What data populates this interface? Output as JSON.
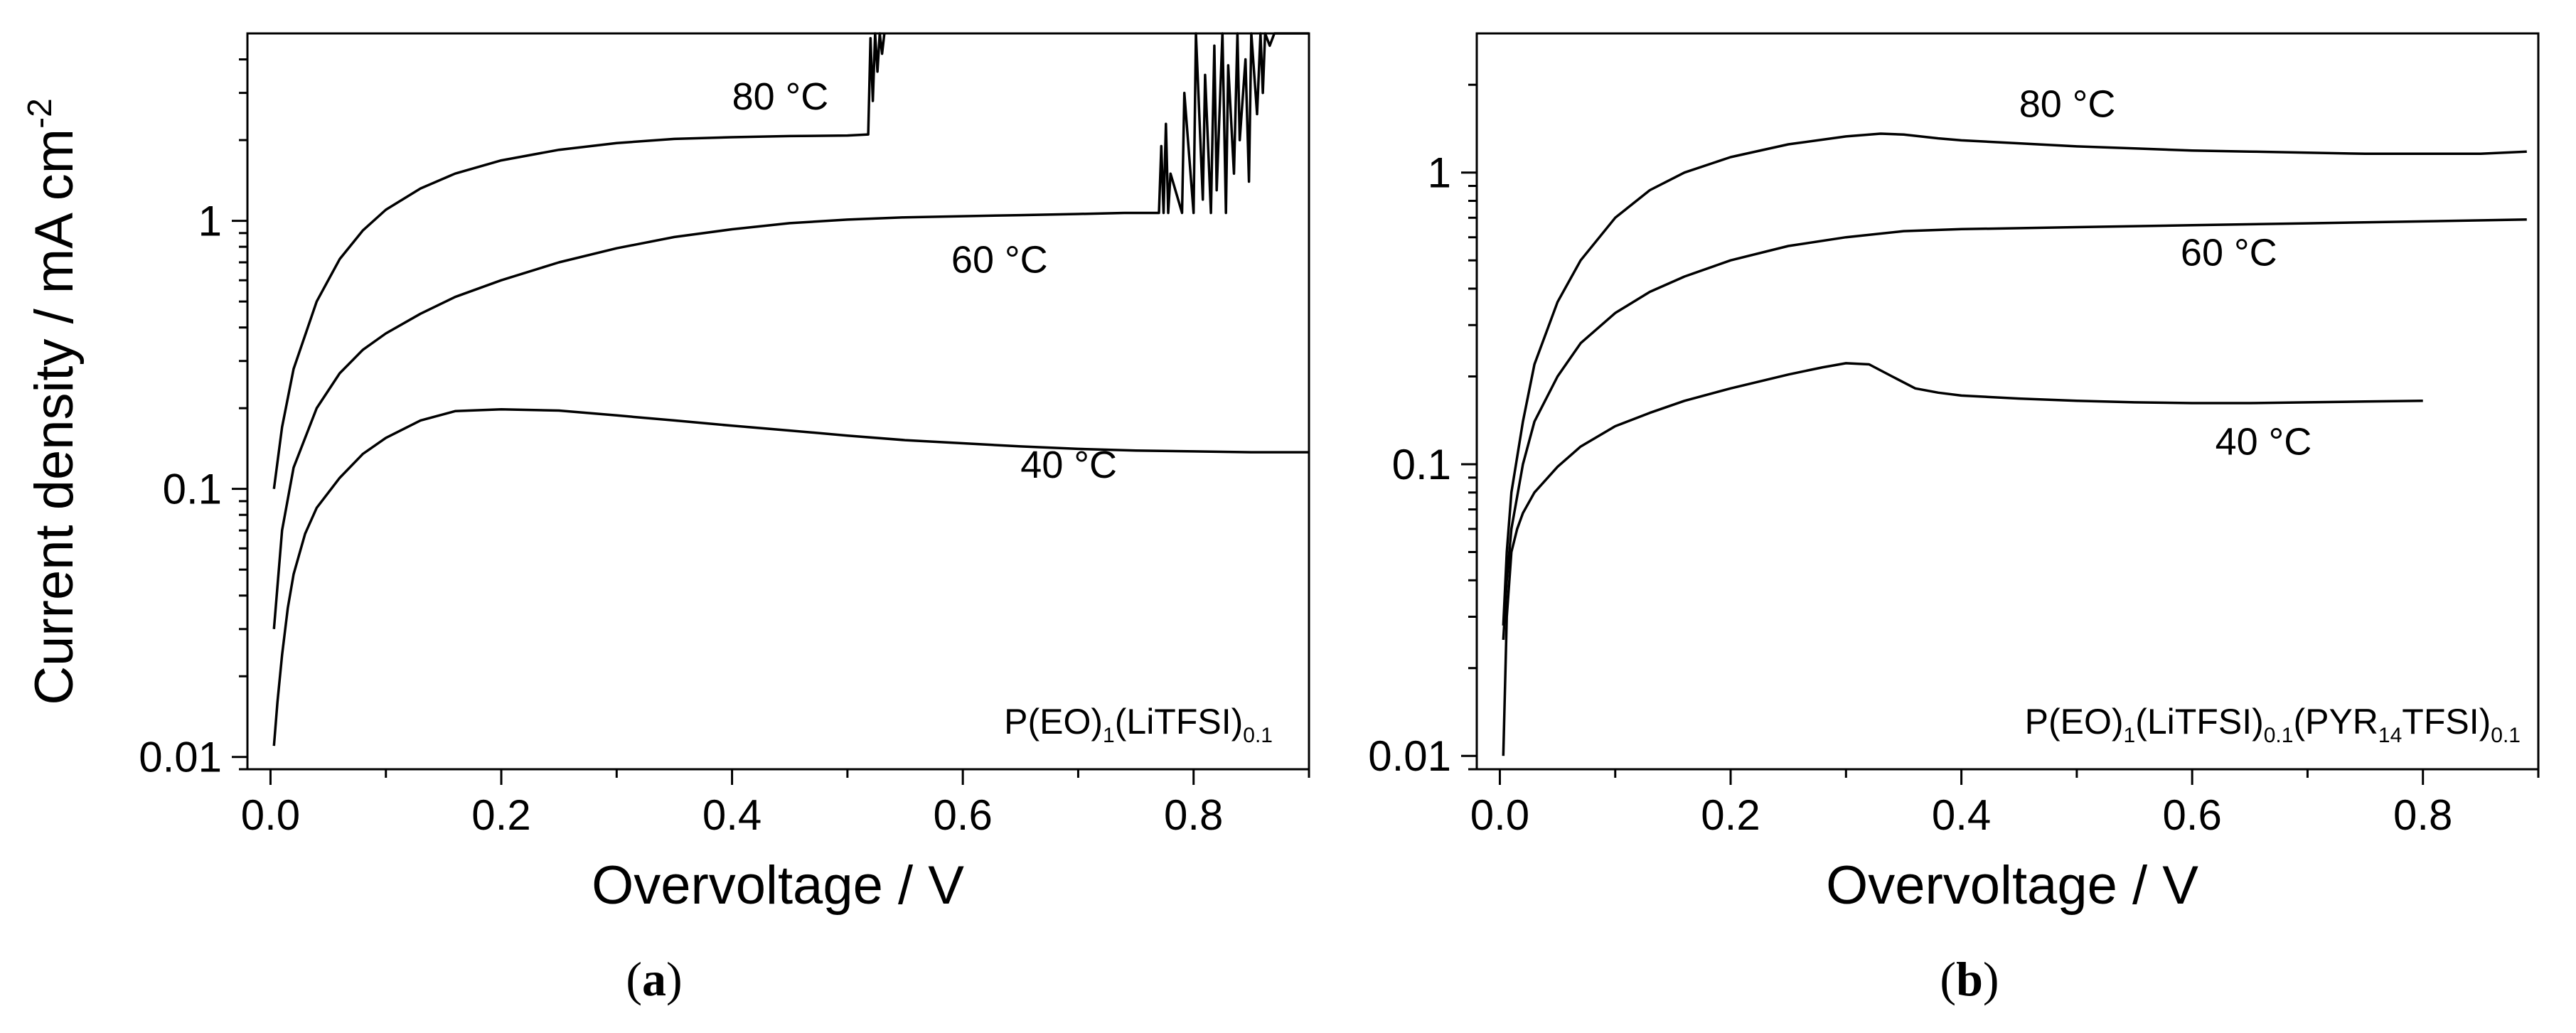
{
  "chart_data": [
    {
      "type": "line",
      "panel_label": "a",
      "xlabel": "Overvoltage / V",
      "ylabel_main": "Current density / mA cm",
      "ylabel_superscript": "-2",
      "xlim": [
        -0.02,
        0.9
      ],
      "ylim": [
        0.009,
        5.0
      ],
      "yscale": "log",
      "x_ticks": [
        0.0,
        0.2,
        0.4,
        0.6,
        0.8
      ],
      "x_tick_labels": [
        "0.0",
        "0.2",
        "0.4",
        "0.6",
        "0.8"
      ],
      "y_ticks": [
        0.01,
        0.1,
        1
      ],
      "y_tick_labels": [
        "0.01",
        "0.1",
        "1"
      ],
      "composition": [
        {
          "text": "P(EO)",
          "sub": false
        },
        {
          "text": "1",
          "sub": true
        },
        {
          "text": "(LiTFSI)",
          "sub": false
        },
        {
          "text": "0.1",
          "sub": true
        }
      ],
      "series": [
        {
          "name": "80 °C",
          "label_text": "80 °C",
          "label_pos": [
            0.4,
            2.6
          ],
          "x": [
            0.003,
            0.01,
            0.02,
            0.04,
            0.06,
            0.08,
            0.1,
            0.13,
            0.16,
            0.2,
            0.25,
            0.3,
            0.35,
            0.4,
            0.45,
            0.5,
            0.518,
            0.52,
            0.522,
            0.524,
            0.526,
            0.528,
            0.53,
            0.532
          ],
          "values": [
            0.1,
            0.17,
            0.28,
            0.5,
            0.72,
            0.92,
            1.1,
            1.32,
            1.5,
            1.68,
            1.84,
            1.95,
            2.02,
            2.05,
            2.07,
            2.08,
            2.1,
            4.8,
            2.8,
            5.0,
            3.6,
            5.0,
            4.2,
            5.0
          ]
        },
        {
          "name": "60 °C",
          "label_text": "60 °C",
          "label_pos": [
            0.59,
            0.64
          ],
          "x": [
            0.003,
            0.01,
            0.02,
            0.04,
            0.06,
            0.08,
            0.1,
            0.13,
            0.16,
            0.2,
            0.25,
            0.3,
            0.35,
            0.4,
            0.45,
            0.5,
            0.55,
            0.6,
            0.65,
            0.7,
            0.74,
            0.77,
            0.772,
            0.774,
            0.776,
            0.778,
            0.78,
            0.79,
            0.792,
            0.8,
            0.802,
            0.808,
            0.81,
            0.815,
            0.818,
            0.82,
            0.825,
            0.828,
            0.83,
            0.835,
            0.838,
            0.84,
            0.845,
            0.848,
            0.85,
            0.855,
            0.858,
            0.86,
            0.862,
            0.866,
            0.87,
            0.9
          ],
          "values": [
            0.03,
            0.07,
            0.12,
            0.2,
            0.27,
            0.33,
            0.38,
            0.45,
            0.52,
            0.6,
            0.7,
            0.79,
            0.87,
            0.93,
            0.98,
            1.01,
            1.03,
            1.04,
            1.05,
            1.06,
            1.07,
            1.07,
            1.9,
            1.07,
            2.3,
            1.07,
            1.5,
            1.07,
            3.0,
            1.07,
            5.0,
            1.2,
            3.5,
            1.07,
            4.5,
            1.3,
            5.0,
            1.07,
            3.8,
            1.5,
            5.0,
            2.0,
            4.0,
            1.4,
            5.0,
            2.5,
            5.0,
            3.0,
            5.0,
            4.5,
            5.0,
            5.0
          ]
        },
        {
          "name": "40 °C",
          "label_text": "40 °C",
          "label_pos": [
            0.65,
            0.11
          ],
          "x": [
            0.003,
            0.006,
            0.01,
            0.015,
            0.02,
            0.03,
            0.04,
            0.06,
            0.08,
            0.1,
            0.13,
            0.16,
            0.2,
            0.25,
            0.3,
            0.35,
            0.4,
            0.45,
            0.5,
            0.55,
            0.6,
            0.65,
            0.7,
            0.75,
            0.8,
            0.85,
            0.9
          ],
          "values": [
            0.011,
            0.016,
            0.024,
            0.036,
            0.048,
            0.068,
            0.085,
            0.11,
            0.135,
            0.155,
            0.18,
            0.195,
            0.198,
            0.196,
            0.188,
            0.18,
            0.172,
            0.165,
            0.158,
            0.152,
            0.148,
            0.144,
            0.141,
            0.139,
            0.138,
            0.137,
            0.137
          ]
        }
      ]
    },
    {
      "type": "line",
      "panel_label": "b",
      "xlabel": "Overvoltage / V",
      "xlim": [
        -0.02,
        0.9
      ],
      "ylim": [
        0.009,
        3.0
      ],
      "yscale": "log",
      "x_ticks": [
        0.0,
        0.2,
        0.4,
        0.6,
        0.8
      ],
      "x_tick_labels": [
        "0.0",
        "0.2",
        "0.4",
        "0.6",
        "0.8"
      ],
      "y_ticks": [
        0.01,
        0.1,
        1
      ],
      "y_tick_labels": [
        "0.01",
        "0.1",
        "1"
      ],
      "composition": [
        {
          "text": "P(EO)",
          "sub": false
        },
        {
          "text": "1",
          "sub": true
        },
        {
          "text": "(LiTFSI)",
          "sub": false
        },
        {
          "text": "0.1",
          "sub": true
        },
        {
          "text": "(PYR",
          "sub": false
        },
        {
          "text": "14",
          "sub": true
        },
        {
          "text": "TFSI)",
          "sub": false
        },
        {
          "text": "0.1",
          "sub": true
        }
      ],
      "series": [
        {
          "name": "80 °C",
          "label_text": "80 °C",
          "label_pos": [
            0.45,
            1.55
          ],
          "x": [
            0.003,
            0.006,
            0.01,
            0.02,
            0.03,
            0.05,
            0.07,
            0.1,
            0.13,
            0.16,
            0.2,
            0.25,
            0.3,
            0.33,
            0.35,
            0.38,
            0.4,
            0.45,
            0.5,
            0.55,
            0.6,
            0.65,
            0.7,
            0.75,
            0.8,
            0.85,
            0.89
          ],
          "values": [
            0.028,
            0.05,
            0.08,
            0.14,
            0.22,
            0.36,
            0.5,
            0.7,
            0.87,
            1.0,
            1.13,
            1.25,
            1.33,
            1.36,
            1.35,
            1.31,
            1.29,
            1.26,
            1.23,
            1.21,
            1.19,
            1.18,
            1.17,
            1.16,
            1.16,
            1.16,
            1.18
          ]
        },
        {
          "name": "60 °C",
          "label_text": "60 °C",
          "label_pos": [
            0.59,
            0.48
          ],
          "x": [
            0.003,
            0.006,
            0.01,
            0.02,
            0.03,
            0.05,
            0.07,
            0.1,
            0.13,
            0.16,
            0.2,
            0.25,
            0.3,
            0.35,
            0.4,
            0.5,
            0.6,
            0.7,
            0.8,
            0.89
          ],
          "values": [
            0.025,
            0.04,
            0.06,
            0.1,
            0.14,
            0.2,
            0.26,
            0.33,
            0.39,
            0.44,
            0.5,
            0.56,
            0.6,
            0.63,
            0.64,
            0.65,
            0.66,
            0.67,
            0.68,
            0.69
          ]
        },
        {
          "name": "40 °C",
          "label_text": "40 °C",
          "label_pos": [
            0.62,
            0.108
          ],
          "x": [
            0.003,
            0.006,
            0.01,
            0.015,
            0.02,
            0.03,
            0.05,
            0.07,
            0.1,
            0.13,
            0.16,
            0.2,
            0.25,
            0.28,
            0.3,
            0.32,
            0.34,
            0.36,
            0.38,
            0.4,
            0.45,
            0.5,
            0.55,
            0.6,
            0.65,
            0.7,
            0.75,
            0.8
          ],
          "values": [
            0.01,
            0.03,
            0.05,
            0.06,
            0.068,
            0.08,
            0.098,
            0.115,
            0.135,
            0.15,
            0.165,
            0.182,
            0.203,
            0.215,
            0.222,
            0.22,
            0.2,
            0.182,
            0.176,
            0.172,
            0.168,
            0.165,
            0.163,
            0.162,
            0.162,
            0.163,
            0.164,
            0.165
          ]
        }
      ]
    }
  ],
  "captions": {
    "a": "(a)",
    "b": "(b)"
  }
}
